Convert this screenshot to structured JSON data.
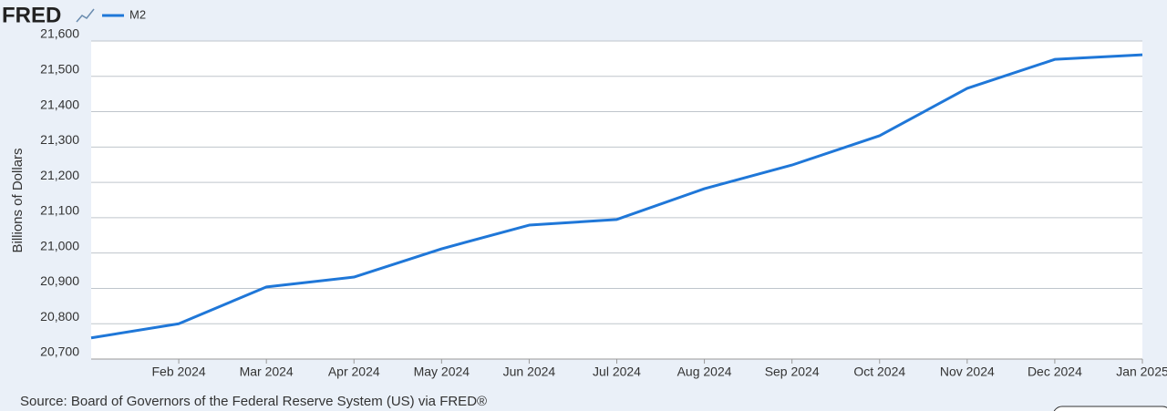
{
  "logo": "FRED",
  "source": "Source: Board of Governors of the Federal Reserve System (US) via FRED®",
  "chart_data": {
    "type": "line",
    "y_label": "Billions of Dollars",
    "categories": [
      null,
      "Feb 2024",
      "Mar 2024",
      "Apr 2024",
      "May 2024",
      "Jun 2024",
      "Jul 2024",
      "Aug 2024",
      "Sep 2024",
      "Oct 2024",
      "Nov 2024",
      "Dec 2024",
      "Jan 2025"
    ],
    "series": [
      {
        "name": "M2",
        "color": "#1f77d8",
        "values": [
          20760,
          20800,
          20904,
          20932,
          21012,
          21079,
          21095,
          21182,
          21249,
          21332,
          21466,
          21548,
          21561
        ]
      }
    ],
    "ylim": [
      20700,
      21600
    ],
    "yticks": [
      {
        "value": 20700,
        "label": "20,700"
      },
      {
        "value": 20800,
        "label": "20,800"
      },
      {
        "value": 20900,
        "label": "20,900"
      },
      {
        "value": 21000,
        "label": "21,000"
      },
      {
        "value": 21100,
        "label": "21,100"
      },
      {
        "value": 21200,
        "label": "21,200"
      },
      {
        "value": 21300,
        "label": "21,300"
      },
      {
        "value": 21400,
        "label": "21,400"
      },
      {
        "value": 21500,
        "label": "21,500"
      },
      {
        "value": 21600,
        "label": "21,600"
      }
    ],
    "grid": true
  }
}
